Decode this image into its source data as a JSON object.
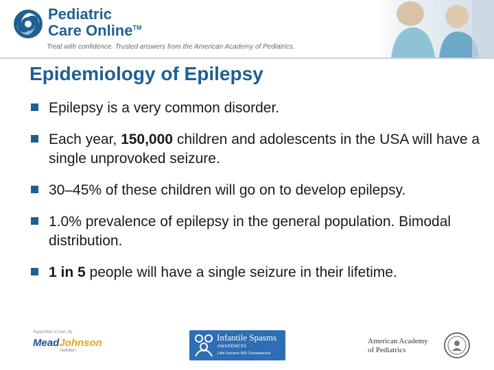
{
  "header": {
    "brand_line1": "Pediatric",
    "brand_line2": "Care Online",
    "brand_tm": "TM",
    "tagline": "Treat with confidence. Trusted answers from the American Academy of Pediatrics."
  },
  "slide": {
    "title": "Epidemiology of Epilepsy",
    "bullets": [
      {
        "text": "Epilepsy is a very common disorder."
      },
      {
        "pre": "Each year, ",
        "bold": "150,000",
        "post": " children and adolescents in the USA will have a single unprovoked seizure."
      },
      {
        "text": "30–45% of these children will go on to develop epilepsy."
      },
      {
        "text": "1.0% prevalence of epilepsy in the general population. Bimodal distribution."
      },
      {
        "bold": "1 in 5",
        "post": " people will have a single seizure in their lifetime."
      }
    ]
  },
  "footer": {
    "mj_supported": "Supported, in part, by",
    "mj_name_a": "Mead",
    "mj_name_b": "Johnson",
    "mj_sub": "Nutrition",
    "is_title": "Infantile Spasms",
    "is_awareness": "AWARENESS",
    "is_tagline": "Little Seizures: BIG Consequences",
    "aap_line1": "American Academy",
    "aap_line2": "of Pediatrics"
  },
  "colors": {
    "brand_blue": "#1f5f93",
    "bullet_text": "#1a1a1a",
    "is_blue": "#2f6db4"
  },
  "icons": {
    "logo": "pco-swirl-logo",
    "bullet": "square-bullet-icon",
    "seal": "aap-seal-icon"
  }
}
